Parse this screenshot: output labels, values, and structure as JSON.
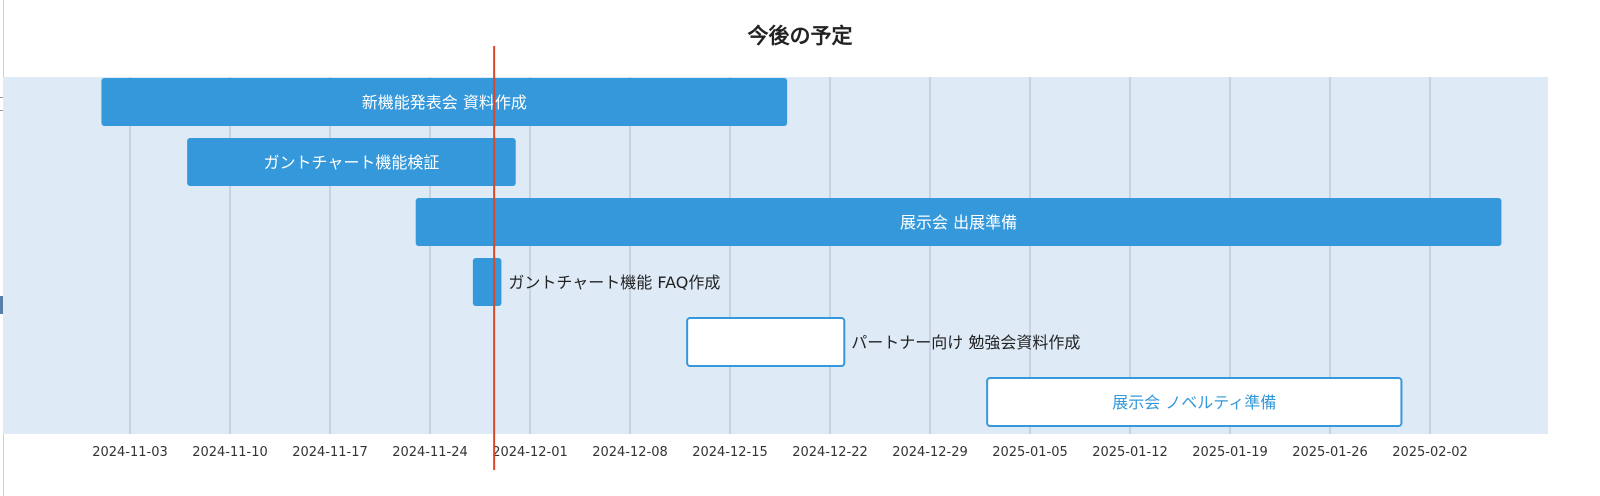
{
  "chart_data": {
    "type": "gantt",
    "title": "今後の予定",
    "x_ticks": [
      "2024-11-03",
      "2024-11-10",
      "2024-11-17",
      "2024-11-24",
      "2024-12-01",
      "2024-12-08",
      "2024-12-15",
      "2024-12-22",
      "2024-12-29",
      "2025-01-05",
      "2025-01-12",
      "2025-01-19",
      "2025-01-26",
      "2025-02-02"
    ],
    "xlim": [
      "2024-10-27",
      "2025-02-08"
    ],
    "today": "2024-11-28",
    "tasks": [
      {
        "name": "新機能発表会 資料作成",
        "start": "2024-11-01",
        "end": "2024-12-19",
        "style": "filled"
      },
      {
        "name": "ガントチャート機能検証",
        "start": "2024-11-07",
        "end": "2024-11-30",
        "style": "filled"
      },
      {
        "name": "展示会 出展準備",
        "start": "2024-11-23",
        "end": "2025-02-07",
        "style": "filled"
      },
      {
        "name": "ガントチャート機能 FAQ作成",
        "start": "2024-11-27",
        "end": "2024-11-29",
        "style": "filled"
      },
      {
        "name": "パートナー向け 勉強会資料作成",
        "start": "2024-12-12",
        "end": "2024-12-23",
        "style": "outline"
      },
      {
        "name": "展示会 ノベルティ準備",
        "start": "2025-01-02",
        "end": "2025-01-31",
        "style": "outline"
      }
    ],
    "colors": {
      "background": "#deebf7",
      "bar": "#3498db",
      "outline_fill": "#ffffff",
      "grid": "#b0bec9",
      "today_line": "#d9472b",
      "label_inside": "#ffffff",
      "label_outside": "#222222",
      "label_outline_inside": "#3498db"
    },
    "grid": true
  }
}
